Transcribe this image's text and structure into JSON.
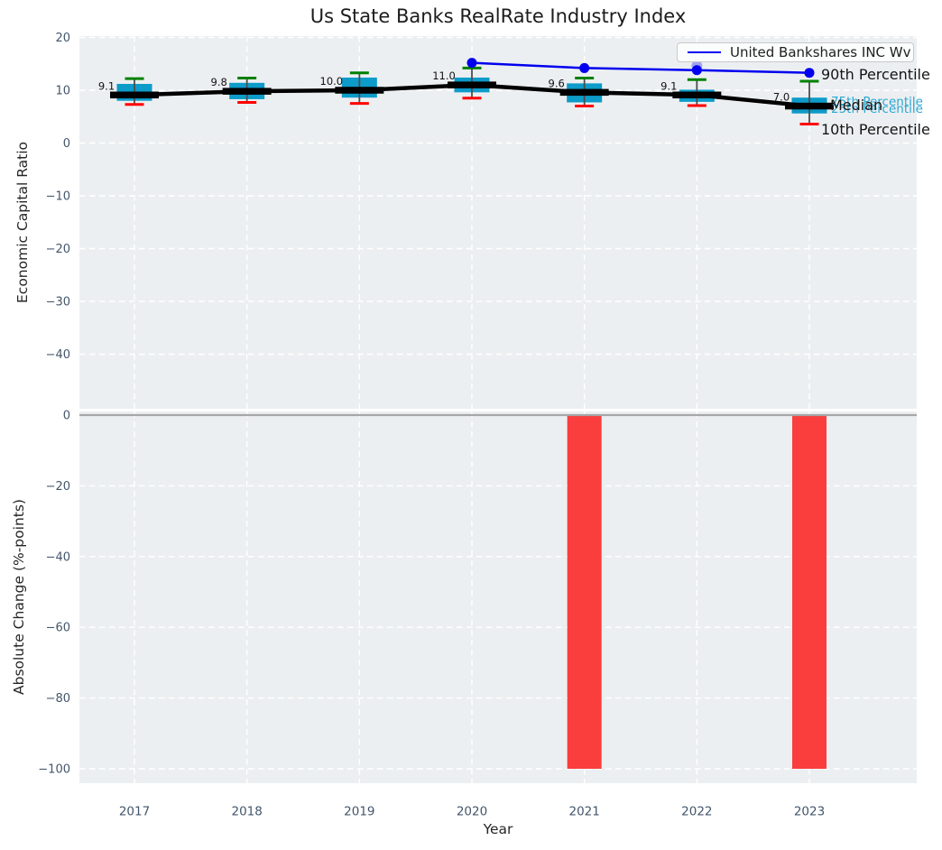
{
  "title": "Us State Banks RealRate Industry Index",
  "legend": {
    "series_label": "United Bankshares INC Wv"
  },
  "right_labels": {
    "p90": "90th Percentile",
    "p75": "75th Percentile",
    "median": "Median",
    "p25": "25th Percentile",
    "p10": "10th Percentile"
  },
  "colors": {
    "panel_bg": "#eceff1",
    "grid": "#ffffff",
    "tick_text": "#44566b",
    "box_fill": "#0d9bc9",
    "whisker": "#4d4d4d",
    "cap_top": "#008000",
    "cap_bottom": "#ff0000",
    "median_line": "#000000",
    "company_line": "#0000ee",
    "bar_negative": "#fa3d3d",
    "zero_line": "#a6a6a6",
    "annotation_text": "#111111"
  },
  "chart_data": [
    {
      "type": "boxplot",
      "title": "Us State Banks RealRate Industry Index",
      "ylabel": "Economic Capital Ratio",
      "xlabel": "Year",
      "grid": true,
      "legend_position": "upper right",
      "categories": [
        "2017",
        "2018",
        "2019",
        "2020",
        "2021",
        "2022",
        "2023"
      ],
      "yticks": [
        20,
        10,
        0,
        -10,
        -20,
        -30,
        -40
      ],
      "ylim": [
        -50.3,
        20.3
      ],
      "boxes": [
        {
          "year": "2017",
          "p10": 7.3,
          "p25": 8.0,
          "median": 9.1,
          "p75": 11.2,
          "p90": 12.2,
          "label": "9.1"
        },
        {
          "year": "2018",
          "p10": 7.7,
          "p25": 8.3,
          "median": 9.8,
          "p75": 11.4,
          "p90": 12.3,
          "label": "9.8"
        },
        {
          "year": "2019",
          "p10": 7.5,
          "p25": 8.6,
          "median": 10.0,
          "p75": 12.4,
          "p90": 13.3,
          "label": "10.0"
        },
        {
          "year": "2020",
          "p10": 8.5,
          "p25": 9.6,
          "median": 11.0,
          "p75": 12.4,
          "p90": 14.2,
          "label": "11.0"
        },
        {
          "year": "2021",
          "p10": 7.0,
          "p25": 7.7,
          "median": 9.6,
          "p75": 11.3,
          "p90": 12.3,
          "label": "9.6"
        },
        {
          "year": "2022",
          "p10": 7.1,
          "p25": 7.8,
          "median": 9.1,
          "p75": 10.1,
          "p90": 12.0,
          "label": "9.1"
        },
        {
          "year": "2023",
          "p10": 3.6,
          "p25": 5.6,
          "median": 7.0,
          "p75": 8.6,
          "p90": 11.7,
          "label": "7.0"
        }
      ],
      "series": [
        {
          "name": "United Bankshares INC Wv",
          "x": [
            "2020",
            "2021",
            "2022",
            "2023"
          ],
          "values": [
            15.2,
            14.2,
            13.8,
            13.3
          ],
          "color": "#0000ee",
          "marker": "circle"
        }
      ],
      "ghost_point": {
        "x": "2022",
        "value": 14.6,
        "opacity": 0.32
      }
    },
    {
      "type": "bar",
      "ylabel": "Absolute Change (%-points)",
      "xlabel": "Year",
      "grid": true,
      "categories": [
        "2017",
        "2018",
        "2019",
        "2020",
        "2021",
        "2022",
        "2023"
      ],
      "values": [
        0,
        0,
        0,
        0,
        -100,
        0,
        -100
      ],
      "yticks": [
        0,
        -20,
        -40,
        -60,
        -80,
        -100
      ],
      "ylim": [
        -104,
        1
      ],
      "zero_line": true
    }
  ]
}
